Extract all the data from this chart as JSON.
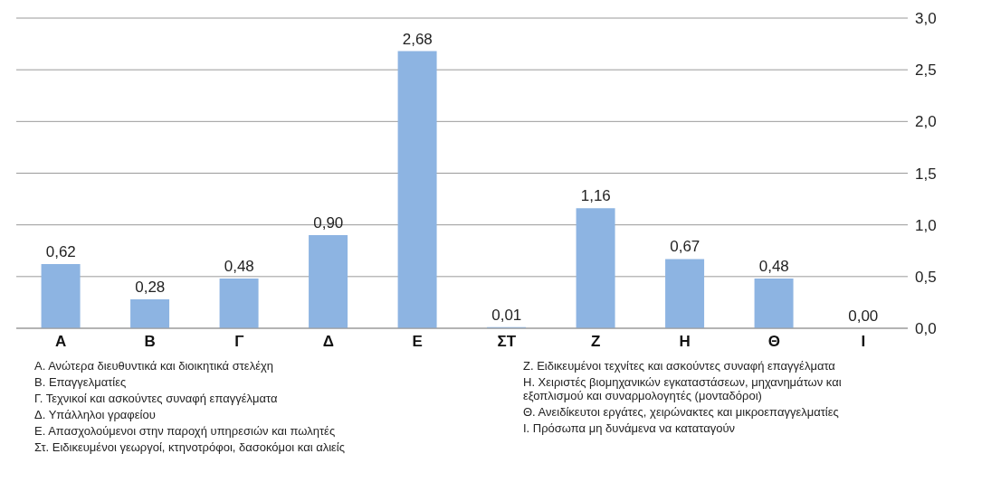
{
  "chart_data": {
    "type": "bar",
    "categories": [
      "Α",
      "Β",
      "Γ",
      "Δ",
      "Ε",
      "ΣΤ",
      "Ζ",
      "Η",
      "Θ",
      "Ι"
    ],
    "values": [
      0.62,
      0.28,
      0.48,
      0.9,
      2.68,
      0.01,
      1.16,
      0.67,
      0.48,
      0.0
    ],
    "value_labels": [
      "0,62",
      "0,28",
      "0,48",
      "0,90",
      "2,68",
      "0,01",
      "1,16",
      "0,67",
      "0,48",
      "0,00"
    ],
    "color": "#8db4e2",
    "ylim": [
      0,
      3
    ],
    "yticks": [
      {
        "value": 0,
        "label": "0,0"
      },
      {
        "value": 0.5,
        "label": "0,5"
      },
      {
        "value": 1,
        "label": "1,0"
      },
      {
        "value": 1.5,
        "label": "1,5"
      },
      {
        "value": 2,
        "label": "2,0"
      },
      {
        "value": 2.5,
        "label": "2,5"
      },
      {
        "value": 3,
        "label": "3,0"
      }
    ],
    "grid": "y",
    "annotations": [
      "Α. Ανώτερα διευθυντικά και διοικητικά στελέχη",
      "Β. Επαγγελματίες",
      "Γ. Τεχνικοί και ασκούντες συναφή επαγγέλματα",
      "Δ. Υπάλληλοι γραφείου",
      "Ε. Απασχολούμενοι στην παροχή υπηρεσιών και πωλητές",
      "Στ. Ειδικευμένοι γεωργοί, κτηνοτρόφοι, δασοκόμοι και αλιείς",
      "Ζ. Ειδικευμένοι τεχνίτες και ασκούντες συναφή επαγγέλματα",
      "Η. Χειριστές βιομηχανικών εγκαταστάσεων, μηχανημάτων και εξοπλισμού και συναρμολογητές (μονταδόροι)",
      "Θ. Ανειδίκευτοι εργάτες, χειρώνακτες και μικροεπαγγελματίες",
      "Ι. Πρόσωπα μη δυνάμενα να καταταγούν"
    ]
  }
}
